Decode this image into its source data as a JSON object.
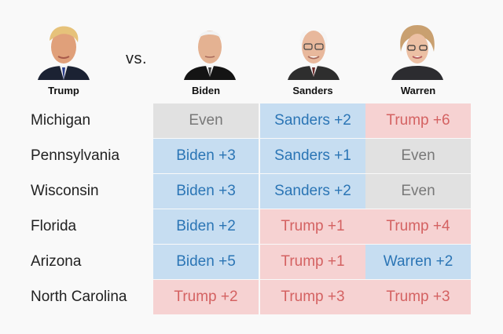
{
  "colors": {
    "democrat_fill": "#c6ddf1",
    "democrat_text": "#2b75b5",
    "trump_fill": "#f6d2d2",
    "trump_text": "#d46262",
    "even_fill": "#e1e1e1",
    "even_text": "#787878"
  },
  "header": {
    "incumbent": "Trump",
    "vs_label": "vs.",
    "challengers": [
      "Biden",
      "Sanders",
      "Warren"
    ]
  },
  "chart_data": {
    "type": "table",
    "columns": [
      "Biden",
      "Sanders",
      "Warren"
    ],
    "rows": [
      {
        "state": "Michigan",
        "cells": [
          {
            "text": "Even",
            "leader": "even",
            "margin": 0
          },
          {
            "text": "Sanders +2",
            "leader": "Sanders",
            "margin": 2
          },
          {
            "text": "Trump +6",
            "leader": "Trump",
            "margin": 6
          }
        ]
      },
      {
        "state": "Pennsylvania",
        "cells": [
          {
            "text": "Biden +3",
            "leader": "Biden",
            "margin": 3
          },
          {
            "text": "Sanders +1",
            "leader": "Sanders",
            "margin": 1
          },
          {
            "text": "Even",
            "leader": "even",
            "margin": 0
          }
        ]
      },
      {
        "state": "Wisconsin",
        "cells": [
          {
            "text": "Biden +3",
            "leader": "Biden",
            "margin": 3
          },
          {
            "text": "Sanders +2",
            "leader": "Sanders",
            "margin": 2
          },
          {
            "text": "Even",
            "leader": "even",
            "margin": 0
          }
        ]
      },
      {
        "state": "Florida",
        "cells": [
          {
            "text": "Biden +2",
            "leader": "Biden",
            "margin": 2
          },
          {
            "text": "Trump +1",
            "leader": "Trump",
            "margin": 1
          },
          {
            "text": "Trump +4",
            "leader": "Trump",
            "margin": 4
          }
        ]
      },
      {
        "state": "Arizona",
        "cells": [
          {
            "text": "Biden +5",
            "leader": "Biden",
            "margin": 5
          },
          {
            "text": "Trump +1",
            "leader": "Trump",
            "margin": 1
          },
          {
            "text": "Warren +2",
            "leader": "Warren",
            "margin": 2
          }
        ]
      },
      {
        "state": "North Carolina",
        "cells": [
          {
            "text": "Trump +2",
            "leader": "Trump",
            "margin": 2
          },
          {
            "text": "Trump +3",
            "leader": "Trump",
            "margin": 3
          },
          {
            "text": "Trump +3",
            "leader": "Trump",
            "margin": 3
          }
        ]
      }
    ]
  }
}
